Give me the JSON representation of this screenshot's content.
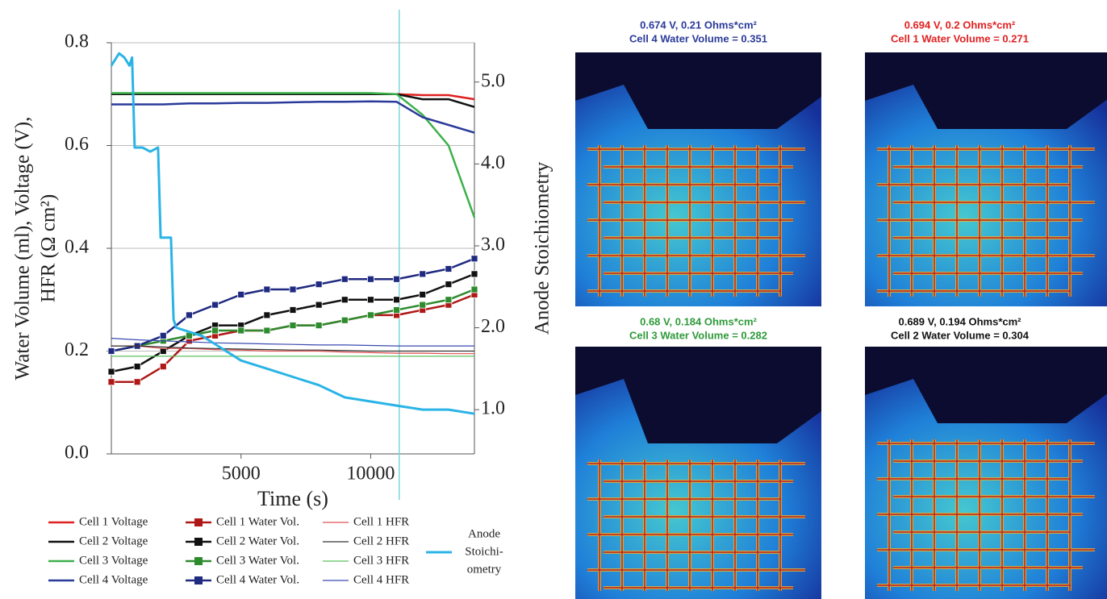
{
  "chart_data": {
    "type": "line",
    "xlabel": "Time (s)",
    "ylabel": [
      "Water Volume (ml), Voltage (V),",
      "HFR (Ω cm²)"
    ],
    "y2label": "Anode Stoichiometry",
    "x": [
      0,
      1000,
      2000,
      3000,
      4000,
      5000,
      6000,
      7000,
      8000,
      9000,
      10000,
      11000,
      12000,
      13000,
      14000
    ],
    "xlim": [
      0,
      14000
    ],
    "xticks": [
      5000,
      10000
    ],
    "ylim": [
      0,
      0.8
    ],
    "yticks": [
      {
        "value": 0,
        "label": "0.0"
      },
      0.2,
      0.4,
      0.6,
      0.8
    ],
    "y2lim": [
      0.46,
      5.48
    ],
    "y2ticks": [
      {
        "value": 1,
        "label": "1.0"
      },
      {
        "value": 2,
        "label": "2.0"
      },
      {
        "value": 3,
        "label": "3.0"
      },
      {
        "value": 4,
        "label": "4.0"
      },
      {
        "value": 5,
        "label": "5.0"
      }
    ],
    "grid": true,
    "vline": 11100,
    "series": [
      {
        "name": "Cell 1 Voltage",
        "style": "voltage",
        "color": "#e02020",
        "values": [
          0.7,
          0.7,
          0.7,
          0.7,
          0.7,
          0.7,
          0.7,
          0.7,
          0.7,
          0.7,
          0.7,
          0.7,
          0.698,
          0.698,
          0.69
        ]
      },
      {
        "name": "Cell 2 Voltage",
        "style": "voltage",
        "color": "#111111",
        "values": [
          0.7,
          0.7,
          0.7,
          0.7,
          0.7,
          0.7,
          0.7,
          0.7,
          0.7,
          0.7,
          0.7,
          0.7,
          0.69,
          0.69,
          0.675
        ]
      },
      {
        "name": "Cell 3 Voltage",
        "style": "voltage",
        "color": "#3cb04a",
        "values": [
          0.702,
          0.702,
          0.702,
          0.702,
          0.702,
          0.702,
          0.702,
          0.702,
          0.702,
          0.702,
          0.702,
          0.7,
          0.66,
          0.6,
          0.46
        ]
      },
      {
        "name": "Cell 4 Voltage",
        "style": "voltage",
        "color": "#2a3a9a",
        "values": [
          0.68,
          0.68,
          0.68,
          0.682,
          0.682,
          0.683,
          0.683,
          0.684,
          0.685,
          0.685,
          0.686,
          0.685,
          0.655,
          0.64,
          0.625
        ]
      },
      {
        "name": "Cell 1 Water Vol.",
        "style": "water",
        "color": "#b01818",
        "values": [
          0.14,
          0.14,
          0.17,
          0.22,
          0.23,
          0.24,
          0.24,
          0.25,
          0.25,
          0.26,
          0.27,
          0.27,
          0.28,
          0.29,
          0.31
        ]
      },
      {
        "name": "Cell 2 Water Vol.",
        "style": "water",
        "color": "#111111",
        "values": [
          0.16,
          0.17,
          0.2,
          0.23,
          0.25,
          0.25,
          0.27,
          0.28,
          0.29,
          0.3,
          0.3,
          0.3,
          0.31,
          0.33,
          0.35
        ]
      },
      {
        "name": "Cell 3 Water Vol.",
        "style": "water",
        "color": "#2e8b2e",
        "values": [
          0.2,
          0.21,
          0.22,
          0.23,
          0.24,
          0.24,
          0.24,
          0.25,
          0.25,
          0.26,
          0.27,
          0.28,
          0.29,
          0.3,
          0.32
        ]
      },
      {
        "name": "Cell 4 Water Vol.",
        "style": "water",
        "color": "#1f2a80",
        "values": [
          0.2,
          0.21,
          0.23,
          0.27,
          0.29,
          0.31,
          0.32,
          0.32,
          0.33,
          0.34,
          0.34,
          0.34,
          0.35,
          0.36,
          0.38
        ]
      },
      {
        "name": "Cell 1 HFR",
        "style": "hfr",
        "color": "#e05050",
        "values": [
          0.21,
          0.21,
          0.205,
          0.205,
          0.203,
          0.202,
          0.2,
          0.2,
          0.2,
          0.198,
          0.197,
          0.196,
          0.196,
          0.195,
          0.195
        ]
      },
      {
        "name": "Cell 2 HFR",
        "style": "hfr",
        "color": "#333333",
        "values": [
          0.21,
          0.21,
          0.208,
          0.206,
          0.205,
          0.204,
          0.203,
          0.202,
          0.202,
          0.201,
          0.2,
          0.2,
          0.2,
          0.2,
          0.2
        ]
      },
      {
        "name": "Cell 3 HFR",
        "style": "hfr",
        "color": "#5cc05c",
        "values": [
          0.19,
          0.19,
          0.19,
          0.19,
          0.19,
          0.19,
          0.19,
          0.19,
          0.19,
          0.19,
          0.19,
          0.19,
          0.19,
          0.19,
          0.19
        ]
      },
      {
        "name": "Cell 4 HFR",
        "style": "hfr",
        "color": "#3a4ab0",
        "values": [
          0.225,
          0.222,
          0.22,
          0.218,
          0.216,
          0.215,
          0.214,
          0.213,
          0.212,
          0.212,
          0.211,
          0.21,
          0.21,
          0.21,
          0.21
        ]
      },
      {
        "name": [
          "Anode",
          "Stoichi-",
          "ometry"
        ],
        "style": "stoich",
        "axis": "y2",
        "color": "#2ab4e6",
        "x": [
          0,
          300,
          500,
          700,
          800,
          900,
          1200,
          1500,
          1800,
          1900,
          2300,
          2400,
          2500,
          3000,
          3500,
          4000,
          5000,
          6000,
          7000,
          8000,
          9000,
          10000,
          11000,
          12000,
          13000,
          14000
        ],
        "values": [
          5.2,
          5.35,
          5.3,
          5.2,
          5.3,
          4.2,
          4.2,
          4.15,
          4.2,
          3.1,
          3.1,
          2.1,
          2.0,
          1.95,
          1.9,
          1.8,
          1.6,
          1.5,
          1.4,
          1.3,
          1.15,
          1.1,
          1.05,
          1.0,
          1.0,
          0.95
        ]
      }
    ]
  },
  "images": [
    {
      "title": [
        "0.674 V, 0.21 Ohms*cm²",
        "Cell 4 Water Volume = 0.351"
      ],
      "color": "#2a3a9a"
    },
    {
      "title": [
        "0.694 V, 0.2 Ohms*cm²",
        "Cell 1 Water Volume = 0.271"
      ],
      "color": "#e02020"
    },
    {
      "title": [
        "0.68 V, 0.184 Ohms*cm²",
        "Cell 3 Water Volume = 0.282"
      ],
      "color": "#2e9a3a"
    },
    {
      "title": [
        "0.689 V, 0.194 Ohms*cm²",
        "Cell 2 Water Volume = 0.304"
      ],
      "color": "#111111"
    }
  ]
}
